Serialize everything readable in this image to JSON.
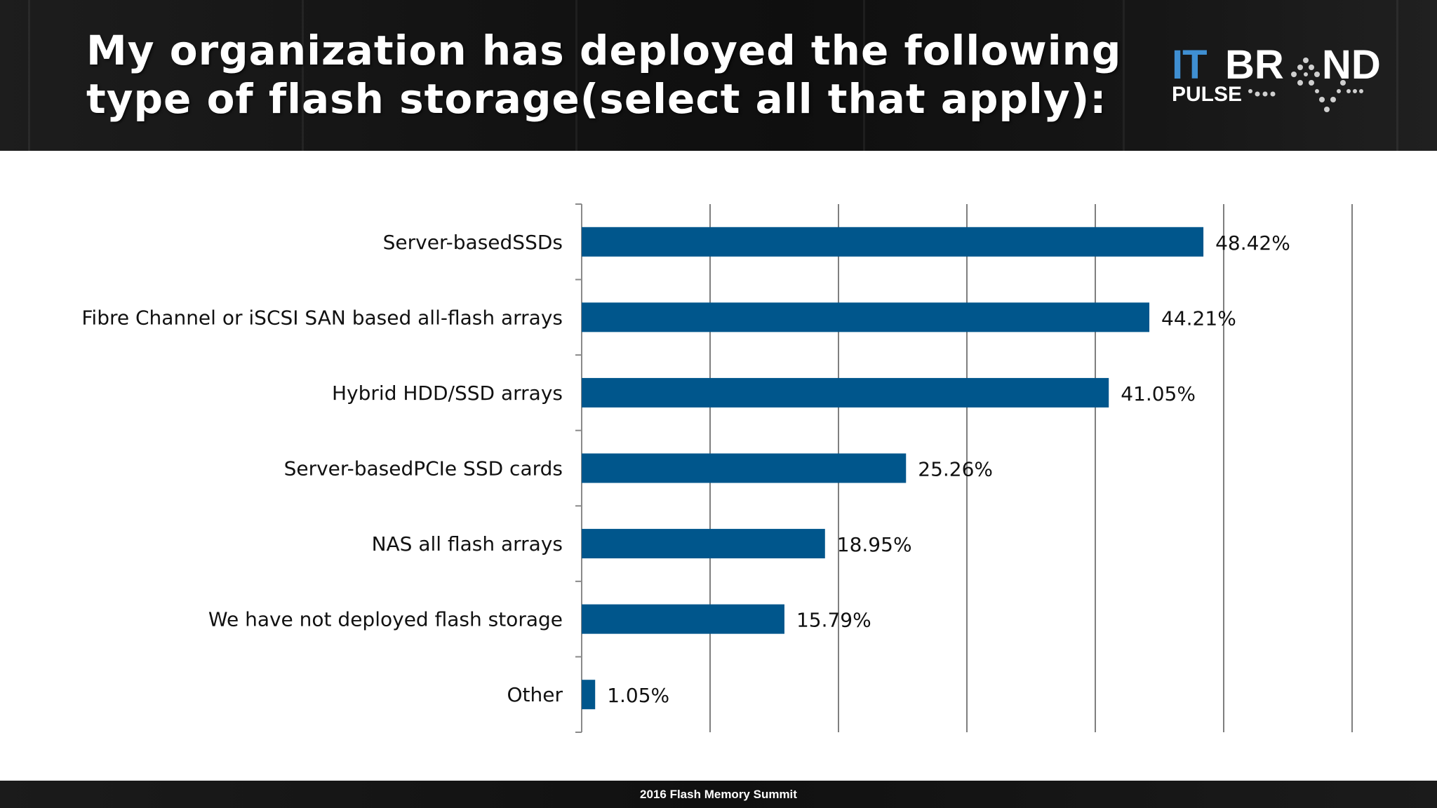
{
  "slide": {
    "title_lines": [
      "My organization has deployed the following",
      "type of flash storage(select all that apply):"
    ],
    "footer": "2016 Flash Memory Summit"
  },
  "logo": {
    "line1_left": "IT",
    "line1_right": "BR",
    "line1_end": "ND",
    "line2": "PULSE"
  },
  "colors": {
    "bar": "#00568c",
    "header_bg": "#141414",
    "logo_blue": "#3f8fd2",
    "gridline": "#7f7f7f"
  },
  "chart_data": {
    "type": "bar",
    "orientation": "horizontal",
    "categories": [
      "Server-basedSSDs",
      "Fibre Channel or iSCSI SAN based all-flash arrays",
      "Hybrid HDD/SSD arrays",
      "Server-basedPCIe SSD cards",
      "NAS all flash arrays",
      "We have not deployed flash storage",
      "Other"
    ],
    "values": [
      48.42,
      44.21,
      41.05,
      25.26,
      18.95,
      15.79,
      1.05
    ],
    "value_labels": [
      "48.42%",
      "44.21%",
      "41.05%",
      "25.26%",
      "18.95%",
      "15.79%",
      "1.05%"
    ],
    "xlim": [
      0,
      60
    ],
    "gridlines": [
      10,
      20,
      30,
      40,
      50,
      60
    ],
    "grid": true,
    "legend": "none"
  }
}
